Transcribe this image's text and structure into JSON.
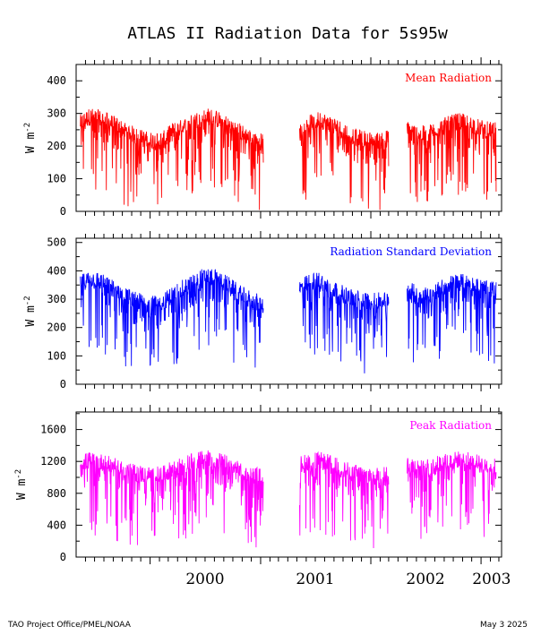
{
  "chart_data": {
    "type": "line",
    "title": "ATLAS II Radiation Data for 5s95w",
    "x_ticks": [
      "2000",
      "2001",
      "2002",
      "2003"
    ],
    "xlim": [
      "1999-05-01",
      "2003-03-10"
    ],
    "panels": [
      {
        "name": "mean",
        "legend": "Mean Radiation",
        "color": "#ff0000",
        "ylabel_base": "W m",
        "ylabel_exp": "-2",
        "ylim": [
          0,
          450
        ],
        "yticks": [
          0,
          100,
          200,
          300,
          400
        ],
        "series": [
          {
            "x": [
              "1999-05-15",
              "1999-06-15",
              "1999-07-15",
              "1999-08-15",
              "1999-09-15",
              "1999-10-15",
              "1999-11-15",
              "1999-12-15",
              "2000-01-15",
              "2000-02-15",
              "2000-03-15",
              "2000-04-15",
              "2000-05-15",
              "2000-06-15",
              "2000-07-15",
              "2000-08-15",
              "2000-09-15",
              "2000-10-15",
              "2000-11-15",
              "2000-12-15",
              "2001-01-10"
            ],
            "y": [
              265,
              285,
              280,
              270,
              255,
              240,
              225,
              215,
              210,
              215,
              240,
              250,
              265,
              280,
              285,
              275,
              260,
              245,
              225,
              215,
              205
            ]
          },
          {
            "x": [
              "2001-05-10",
              "2001-06-15",
              "2001-07-15",
              "2001-08-15",
              "2001-09-15",
              "2001-10-15",
              "2001-11-15",
              "2001-12-15",
              "2002-01-15",
              "2002-02-15",
              "2002-03-01"
            ],
            "y": [
              235,
              265,
              275,
              265,
              250,
              235,
              220,
              215,
              210,
              215,
              220
            ]
          },
          {
            "x": [
              "2002-05-01",
              "2002-06-15",
              "2002-07-15",
              "2002-08-15",
              "2002-09-15",
              "2002-10-15",
              "2002-11-15",
              "2002-12-15",
              "2003-01-15",
              "2003-02-20"
            ],
            "y": [
              245,
              230,
              235,
              250,
              260,
              270,
              265,
              255,
              245,
              240
            ]
          }
        ]
      },
      {
        "name": "sd",
        "legend": "Radiation Standard Deviation",
        "color": "#0000ff",
        "ylabel_base": "W m",
        "ylabel_exp": "-2",
        "ylim": [
          0,
          515
        ],
        "yticks": [
          0,
          100,
          200,
          300,
          400,
          500
        ],
        "series": [
          {
            "x": [
              "1999-05-15",
              "1999-06-15",
              "1999-07-15",
              "1999-08-15",
              "1999-09-15",
              "1999-10-15",
              "1999-11-15",
              "1999-12-15",
              "2000-01-15",
              "2000-02-15",
              "2000-03-15",
              "2000-04-15",
              "2000-05-15",
              "2000-06-15",
              "2000-07-15",
              "2000-08-15",
              "2000-09-15",
              "2000-10-15",
              "2000-11-15",
              "2000-12-15",
              "2001-01-10"
            ],
            "y": [
              350,
              365,
              360,
              340,
              325,
              305,
              290,
              280,
              275,
              285,
              310,
              330,
              350,
              370,
              375,
              365,
              345,
              320,
              300,
              285,
              275
            ]
          },
          {
            "x": [
              "2001-05-10",
              "2001-06-15",
              "2001-07-15",
              "2001-08-15",
              "2001-09-15",
              "2001-10-15",
              "2001-11-15",
              "2001-12-15",
              "2002-01-15",
              "2002-02-15",
              "2002-03-01"
            ],
            "y": [
              330,
              355,
              360,
              340,
              320,
              305,
              295,
              290,
              285,
              290,
              295
            ]
          },
          {
            "x": [
              "2002-05-01",
              "2002-06-15",
              "2002-07-15",
              "2002-08-15",
              "2002-09-15",
              "2002-10-15",
              "2002-11-15",
              "2002-12-15",
              "2003-01-15",
              "2003-02-20"
            ],
            "y": [
              330,
              305,
              310,
              330,
              345,
              355,
              350,
              340,
              330,
              325
            ]
          }
        ]
      },
      {
        "name": "peak",
        "legend": "Peak Radiation",
        "color": "#ff00ff",
        "ylabel_base": "W m",
        "ylabel_exp": "-2",
        "ylim": [
          0,
          1820
        ],
        "yticks": [
          0,
          400,
          800,
          1200,
          1600
        ],
        "series": [
          {
            "x": [
              "1999-05-15",
              "1999-06-15",
              "1999-07-15",
              "1999-08-15",
              "1999-09-15",
              "1999-10-15",
              "1999-11-15",
              "1999-12-15",
              "2000-01-15",
              "2000-02-15",
              "2000-03-15",
              "2000-04-15",
              "2000-05-15",
              "2000-06-15",
              "2000-07-15",
              "2000-08-15",
              "2000-09-15",
              "2000-10-15",
              "2000-11-15",
              "2000-12-15",
              "2001-01-10"
            ],
            "y": [
              1160,
              1190,
              1175,
              1140,
              1100,
              1060,
              1030,
              1010,
              1000,
              1020,
              1080,
              1120,
              1170,
              1200,
              1210,
              1190,
              1140,
              1080,
              1030,
              1000,
              980
            ]
          },
          {
            "x": [
              "2001-05-10",
              "2001-06-15",
              "2001-07-15",
              "2001-08-15",
              "2001-09-15",
              "2001-10-15",
              "2001-11-15",
              "2001-12-15",
              "2002-01-15",
              "2002-02-15",
              "2002-03-01"
            ],
            "y": [
              1140,
              1180,
              1190,
              1160,
              1110,
              1060,
              1030,
              1010,
              1000,
              1020,
              1040
            ]
          },
          {
            "x": [
              "2002-05-01",
              "2002-06-15",
              "2002-07-15",
              "2002-08-15",
              "2002-09-15",
              "2002-10-15",
              "2002-11-15",
              "2002-12-15",
              "2003-01-15",
              "2003-02-20"
            ],
            "y": [
              1150,
              1090,
              1100,
              1150,
              1180,
              1200,
              1190,
              1160,
              1130,
              1110
            ]
          }
        ]
      }
    ]
  },
  "footer": {
    "left": "TAO Project Office/PMEL/NOAA",
    "right": "May  3 2025"
  }
}
